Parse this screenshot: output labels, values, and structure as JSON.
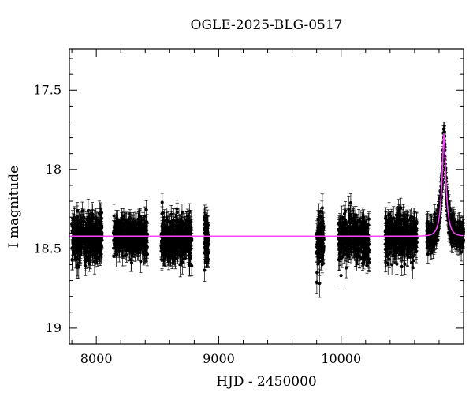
{
  "chart_data": {
    "type": "scatter",
    "title": "OGLE-2025-BLG-0517",
    "xlabel": "HJD - 2450000",
    "ylabel": "I magnitude",
    "xlim": [
      7780,
      11000
    ],
    "ylim": [
      19.1,
      17.24
    ],
    "y_inverted": true,
    "x_ticks": [
      8000,
      9000,
      10000
    ],
    "y_ticks": [
      17.5,
      18,
      18.5,
      19
    ],
    "x_tick_labels": [
      "8000",
      "9000",
      "10000"
    ],
    "y_tick_labels": [
      "17.5",
      "18",
      "18.5",
      "19"
    ],
    "x_minor_step": 200,
    "y_minor_step": 0.1,
    "grid": false,
    "series": [
      {
        "kind": "points_with_errorbars",
        "color": "#000000",
        "seasons": [
          {
            "x_start": 7800,
            "x_end": 8050,
            "mag_mean": 18.43,
            "mag_scatter": 0.07,
            "error": 0.06
          },
          {
            "x_start": 8140,
            "x_end": 8420,
            "mag_mean": 18.42,
            "mag_scatter": 0.06,
            "error": 0.06
          },
          {
            "x_start": 8530,
            "x_end": 8780,
            "mag_mean": 18.44,
            "mag_scatter": 0.07,
            "error": 0.06
          },
          {
            "x_start": 8880,
            "x_end": 8920,
            "mag_mean": 18.45,
            "mag_scatter": 0.08,
            "error": 0.07
          },
          {
            "x_start": 9800,
            "x_end": 9860,
            "mag_mean": 18.45,
            "mag_scatter": 0.08,
            "error": 0.07
          },
          {
            "x_start": 9980,
            "x_end": 10230,
            "mag_mean": 18.43,
            "mag_scatter": 0.07,
            "error": 0.06
          },
          {
            "x_start": 10360,
            "x_end": 10620,
            "mag_mean": 18.42,
            "mag_scatter": 0.07,
            "error": 0.06
          },
          {
            "x_start": 10700,
            "x_end": 11000,
            "mag_mean": 18.42,
            "mag_scatter": 0.04,
            "error": 0.05
          }
        ]
      },
      {
        "kind": "model_curve",
        "color": "#ff44ff",
        "baseline": 18.42,
        "peak_x": 10840,
        "peak_mag": 17.77,
        "tE": 40,
        "u0": 0.2
      }
    ]
  }
}
